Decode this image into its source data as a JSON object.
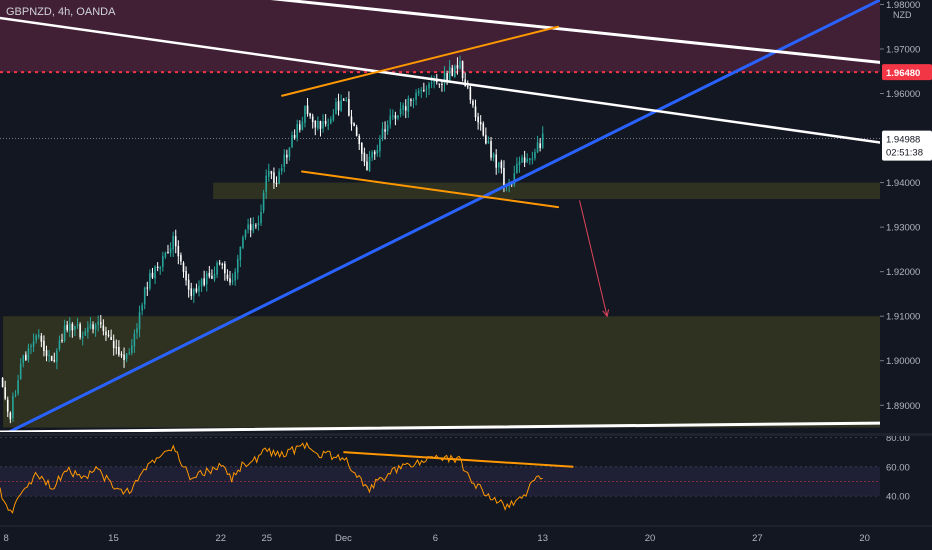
{
  "header": {
    "title": "GBPNZD, 4h, OANDA",
    "currency": "NZD"
  },
  "price_badges": {
    "level_price": "1.96480",
    "last_price": "1.94988",
    "countdown": "02:51:38"
  },
  "colors": {
    "background": "#131722",
    "bull": "#26a69a",
    "bear": "#ffffff",
    "trendline_blue": "#2962ff",
    "trendline_white": "#ffffff",
    "orange": "#ff9800",
    "level_red": "#f23645",
    "zone_upper": "#4a2138",
    "zone_olive": "#3a3b22",
    "rsi_line": "#ff9800"
  },
  "chart_data": [
    {
      "type": "candlestick",
      "title": "GBPNZD, 4h, OANDA",
      "ylim": [
        1.884,
        1.981
      ],
      "y_ticks": [
        1.89,
        1.9,
        1.91,
        1.92,
        1.93,
        1.94,
        1.95,
        1.96,
        1.97,
        1.98
      ],
      "y_tick_labels": [
        "1.89000",
        "1.90000",
        "1.91000",
        "1.92000",
        "1.93000",
        "1.94000",
        "",
        "1.96000",
        "1.97000",
        "1.98000"
      ],
      "x_axis": {
        "ticks": [
          {
            "label": "8",
            "day": 8
          },
          {
            "label": "15",
            "day": 15
          },
          {
            "label": "22",
            "day": 22
          },
          {
            "label": "25",
            "day": 25
          },
          {
            "label": "Dec",
            "day": 30
          },
          {
            "label": "6",
            "day": 36
          },
          {
            "label": "13",
            "day": 43
          },
          {
            "label": "20",
            "day": 50
          },
          {
            "label": "27",
            "day": 57
          },
          {
            "label": "20",
            "day": 64
          }
        ]
      },
      "price_path": [
        {
          "day": 7.6,
          "price": 1.896
        },
        {
          "day": 8.2,
          "price": 1.887
        },
        {
          "day": 9.0,
          "price": 1.899
        },
        {
          "day": 10.0,
          "price": 1.905
        },
        {
          "day": 11.0,
          "price": 1.9
        },
        {
          "day": 12.0,
          "price": 1.908
        },
        {
          "day": 13.0,
          "price": 1.906
        },
        {
          "day": 14.0,
          "price": 1.909
        },
        {
          "day": 15.0,
          "price": 1.904
        },
        {
          "day": 16.0,
          "price": 1.9
        },
        {
          "day": 16.5,
          "price": 1.907
        },
        {
          "day": 17.0,
          "price": 1.916
        },
        {
          "day": 18.0,
          "price": 1.922
        },
        {
          "day": 19.0,
          "price": 1.928
        },
        {
          "day": 19.5,
          "price": 1.921
        },
        {
          "day": 20.0,
          "price": 1.915
        },
        {
          "day": 21.0,
          "price": 1.918
        },
        {
          "day": 22.0,
          "price": 1.922
        },
        {
          "day": 22.7,
          "price": 1.916
        },
        {
          "day": 23.5,
          "price": 1.928
        },
        {
          "day": 24.5,
          "price": 1.932
        },
        {
          "day": 25.0,
          "price": 1.942
        },
        {
          "day": 25.5,
          "price": 1.94
        },
        {
          "day": 26.5,
          "price": 1.948
        },
        {
          "day": 27.5,
          "price": 1.956
        },
        {
          "day": 28.0,
          "price": 1.953
        },
        {
          "day": 29.0,
          "price": 1.954
        },
        {
          "day": 30.0,
          "price": 1.959
        },
        {
          "day": 31.0,
          "price": 1.95
        },
        {
          "day": 31.5,
          "price": 1.944
        },
        {
          "day": 32.0,
          "price": 1.947
        },
        {
          "day": 33.0,
          "price": 1.954
        },
        {
          "day": 34.0,
          "price": 1.957
        },
        {
          "day": 35.0,
          "price": 1.961
        },
        {
          "day": 36.0,
          "price": 1.962
        },
        {
          "day": 37.0,
          "price": 1.965
        },
        {
          "day": 37.6,
          "price": 1.966
        },
        {
          "day": 38.0,
          "price": 1.961
        },
        {
          "day": 39.0,
          "price": 1.952
        },
        {
          "day": 40.0,
          "price": 1.944
        },
        {
          "day": 40.7,
          "price": 1.939
        },
        {
          "day": 41.5,
          "price": 1.944
        },
        {
          "day": 42.0,
          "price": 1.946
        },
        {
          "day": 42.5,
          "price": 1.947
        },
        {
          "day": 43.0,
          "price": 1.95
        }
      ],
      "lines": [
        {
          "name": "blue-uptrend",
          "from": {
            "day": 8.2,
            "price": 1.884
          },
          "to": {
            "day": 65.0,
            "price": 1.981
          }
        },
        {
          "name": "white-top-line",
          "from": {
            "day": 4.0,
            "price": 1.989
          },
          "to": {
            "day": 65.0,
            "price": 1.967
          }
        },
        {
          "name": "white-descending-line",
          "from": {
            "day": 7.5,
            "price": 1.977
          },
          "to": {
            "day": 65.0,
            "price": 1.949
          }
        },
        {
          "name": "white-bottom-line",
          "from": {
            "day": 7.5,
            "price": 1.884
          },
          "to": {
            "day": 65.0,
            "price": 1.886
          }
        },
        {
          "name": "orange-upper-line",
          "from": {
            "day": 26.0,
            "price": 1.9595
          },
          "to": {
            "day": 44.0,
            "price": 1.975
          }
        },
        {
          "name": "orange-lower-line",
          "from": {
            "day": 27.3,
            "price": 1.9425
          },
          "to": {
            "day": 44.0,
            "price": 1.9345
          }
        }
      ],
      "zones": [
        {
          "name": "upper-resistance-zone",
          "x0": 7.5,
          "x1": 65.0,
          "y0": 1.9648,
          "y1": 1.981
        },
        {
          "name": "mid-zone",
          "x0": 21.5,
          "x1": 65.0,
          "y0": 1.9363,
          "y1": 1.94
        },
        {
          "name": "lower-demand-zone",
          "x0": 7.8,
          "x1": 65.0,
          "y0": 1.885,
          "y1": 1.91
        }
      ],
      "level": {
        "price": 1.9648,
        "style": "dotted"
      },
      "last_price": 1.94988,
      "arrow": {
        "from": {
          "day": 45.4,
          "price": 1.936
        },
        "to": {
          "day": 47.2,
          "price": 1.91
        }
      }
    },
    {
      "type": "line",
      "title": "",
      "ylim": [
        21,
        81
      ],
      "y_ticks": [
        40,
        60,
        80
      ],
      "y_tick_labels": [
        "40.00",
        "60.00",
        "80.00"
      ],
      "band": [
        40,
        60
      ],
      "midline": 50,
      "rsi_path": [
        {
          "day": 7.6,
          "value": 44
        },
        {
          "day": 8.2,
          "value": 27
        },
        {
          "day": 9.0,
          "value": 42
        },
        {
          "day": 10.0,
          "value": 55
        },
        {
          "day": 11.0,
          "value": 46
        },
        {
          "day": 12.0,
          "value": 58
        },
        {
          "day": 13.0,
          "value": 52
        },
        {
          "day": 14.0,
          "value": 58
        },
        {
          "day": 15.0,
          "value": 46
        },
        {
          "day": 16.0,
          "value": 42
        },
        {
          "day": 16.5,
          "value": 50
        },
        {
          "day": 17.0,
          "value": 60
        },
        {
          "day": 18.0,
          "value": 66
        },
        {
          "day": 19.0,
          "value": 72
        },
        {
          "day": 19.5,
          "value": 62
        },
        {
          "day": 20.0,
          "value": 52
        },
        {
          "day": 21.0,
          "value": 56
        },
        {
          "day": 22.0,
          "value": 62
        },
        {
          "day": 22.7,
          "value": 52
        },
        {
          "day": 23.5,
          "value": 62
        },
        {
          "day": 24.5,
          "value": 66
        },
        {
          "day": 25.0,
          "value": 72
        },
        {
          "day": 25.5,
          "value": 68
        },
        {
          "day": 26.5,
          "value": 70
        },
        {
          "day": 27.5,
          "value": 75
        },
        {
          "day": 28.0,
          "value": 70
        },
        {
          "day": 29.0,
          "value": 68
        },
        {
          "day": 30.0,
          "value": 66
        },
        {
          "day": 31.0,
          "value": 52
        },
        {
          "day": 31.5,
          "value": 44
        },
        {
          "day": 32.0,
          "value": 48
        },
        {
          "day": 33.0,
          "value": 56
        },
        {
          "day": 34.0,
          "value": 60
        },
        {
          "day": 35.0,
          "value": 64
        },
        {
          "day": 36.0,
          "value": 65
        },
        {
          "day": 37.0,
          "value": 66
        },
        {
          "day": 37.6,
          "value": 64
        },
        {
          "day": 38.0,
          "value": 56
        },
        {
          "day": 39.0,
          "value": 44
        },
        {
          "day": 40.0,
          "value": 38
        },
        {
          "day": 40.7,
          "value": 32
        },
        {
          "day": 41.5,
          "value": 38
        },
        {
          "day": 42.0,
          "value": 44
        },
        {
          "day": 42.5,
          "value": 50
        },
        {
          "day": 43.0,
          "value": 52
        }
      ],
      "divergence_line": {
        "from": {
          "day": 30.0,
          "value": 70
        },
        "to": {
          "day": 45.0,
          "value": 60
        }
      }
    }
  ]
}
